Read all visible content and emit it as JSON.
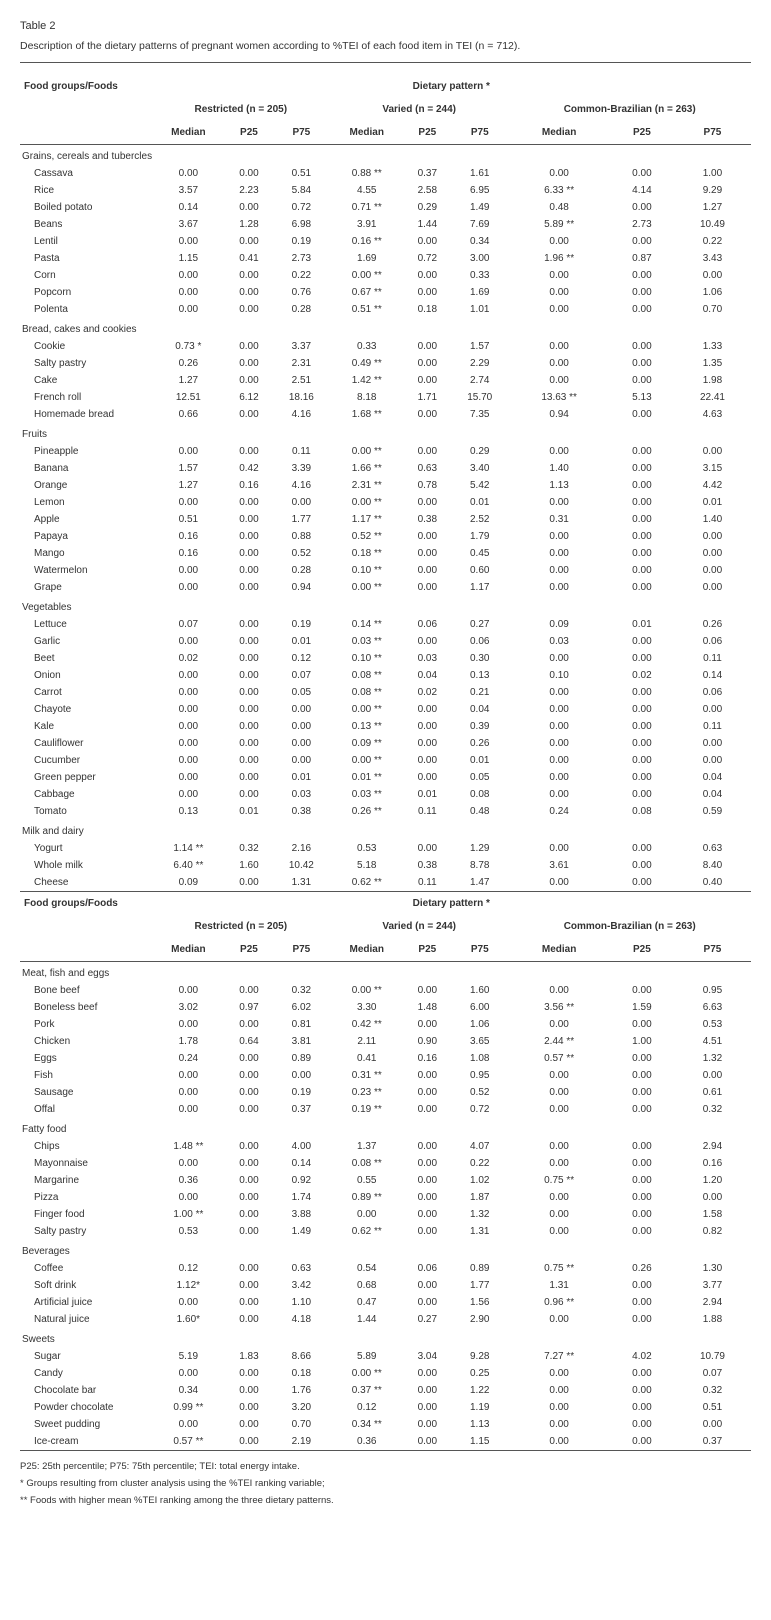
{
  "label": "Table 2",
  "caption": "Description of the dietary patterns of pregnant women according to %TEI of each food item in TEI (n = 712).",
  "header": {
    "c0": "Food groups/Foods",
    "dp": "Dietary pattern *",
    "g1": "Restricted (n = 205)",
    "g2": "Varied (n = 244)",
    "g3": "Common-Brazilian (n = 263)",
    "median": "Median",
    "p25": "P25",
    "p75": "P75"
  },
  "sections1": [
    {
      "title": "Grains, cereals and tubercles",
      "rows": [
        {
          "n": "Cassava",
          "v": [
            "0.00",
            "0.00",
            "0.51",
            "0.88 **",
            "0.37",
            "1.61",
            "0.00",
            "0.00",
            "1.00"
          ]
        },
        {
          "n": "Rice",
          "v": [
            "3.57",
            "2.23",
            "5.84",
            "4.55",
            "2.58",
            "6.95",
            "6.33 **",
            "4.14",
            "9.29"
          ]
        },
        {
          "n": "Boiled potato",
          "v": [
            "0.14",
            "0.00",
            "0.72",
            "0.71 **",
            "0.29",
            "1.49",
            "0.48",
            "0.00",
            "1.27"
          ]
        },
        {
          "n": "Beans",
          "v": [
            "3.67",
            "1.28",
            "6.98",
            "3.91",
            "1.44",
            "7.69",
            "5.89 **",
            "2.73",
            "10.49"
          ]
        },
        {
          "n": "Lentil",
          "v": [
            "0.00",
            "0.00",
            "0.19",
            "0.16 **",
            "0.00",
            "0.34",
            "0.00",
            "0.00",
            "0.22"
          ]
        },
        {
          "n": "Pasta",
          "v": [
            "1.15",
            "0.41",
            "2.73",
            "1.69",
            "0.72",
            "3.00",
            "1.96 **",
            "0.87",
            "3.43"
          ]
        },
        {
          "n": "Corn",
          "v": [
            "0.00",
            "0.00",
            "0.22",
            "0.00 **",
            "0.00",
            "0.33",
            "0.00",
            "0.00",
            "0.00"
          ]
        },
        {
          "n": "Popcorn",
          "v": [
            "0.00",
            "0.00",
            "0.76",
            "0.67 **",
            "0.00",
            "1.69",
            "0.00",
            "0.00",
            "1.06"
          ]
        },
        {
          "n": "Polenta",
          "v": [
            "0.00",
            "0.00",
            "0.28",
            "0.51 **",
            "0.18",
            "1.01",
            "0.00",
            "0.00",
            "0.70"
          ]
        }
      ]
    },
    {
      "title": "Bread, cakes and cookies",
      "rows": [
        {
          "n": "Cookie",
          "v": [
            "0.73 *",
            "0.00",
            "3.37",
            "0.33",
            "0.00",
            "1.57",
            "0.00",
            "0.00",
            "1.33"
          ]
        },
        {
          "n": "Salty pastry",
          "v": [
            "0.26",
            "0.00",
            "2.31",
            "0.49 **",
            "0.00",
            "2.29",
            "0.00",
            "0.00",
            "1.35"
          ]
        },
        {
          "n": "Cake",
          "v": [
            "1.27",
            "0.00",
            "2.51",
            "1.42 **",
            "0.00",
            "2.74",
            "0.00",
            "0.00",
            "1.98"
          ]
        },
        {
          "n": "French roll",
          "v": [
            "12.51",
            "6.12",
            "18.16",
            "8.18",
            "1.71",
            "15.70",
            "13.63 **",
            "5.13",
            "22.41"
          ]
        },
        {
          "n": "Homemade bread",
          "v": [
            "0.66",
            "0.00",
            "4.16",
            "1.68 **",
            "0.00",
            "7.35",
            "0.94",
            "0.00",
            "4.63"
          ]
        }
      ]
    },
    {
      "title": "Fruits",
      "rows": [
        {
          "n": "Pineapple",
          "v": [
            "0.00",
            "0.00",
            "0.11",
            "0.00 **",
            "0.00",
            "0.29",
            "0.00",
            "0.00",
            "0.00"
          ]
        },
        {
          "n": "Banana",
          "v": [
            "1.57",
            "0.42",
            "3.39",
            "1.66 **",
            "0.63",
            "3.40",
            "1.40",
            "0.00",
            "3.15"
          ]
        },
        {
          "n": "Orange",
          "v": [
            "1.27",
            "0.16",
            "4.16",
            "2.31 **",
            "0.78",
            "5.42",
            "1.13",
            "0.00",
            "4.42"
          ]
        },
        {
          "n": "Lemon",
          "v": [
            "0.00",
            "0.00",
            "0.00",
            "0.00 **",
            "0.00",
            "0.01",
            "0.00",
            "0.00",
            "0.01"
          ]
        },
        {
          "n": "Apple",
          "v": [
            "0.51",
            "0.00",
            "1.77",
            "1.17 **",
            "0.38",
            "2.52",
            "0.31",
            "0.00",
            "1.40"
          ]
        },
        {
          "n": "Papaya",
          "v": [
            "0.16",
            "0.00",
            "0.88",
            "0.52 **",
            "0.00",
            "1.79",
            "0.00",
            "0.00",
            "0.00"
          ]
        },
        {
          "n": "Mango",
          "v": [
            "0.16",
            "0.00",
            "0.52",
            "0.18 **",
            "0.00",
            "0.45",
            "0.00",
            "0.00",
            "0.00"
          ]
        },
        {
          "n": "Watermelon",
          "v": [
            "0.00",
            "0.00",
            "0.28",
            "0.10 **",
            "0.00",
            "0.60",
            "0.00",
            "0.00",
            "0.00"
          ]
        },
        {
          "n": "Grape",
          "v": [
            "0.00",
            "0.00",
            "0.94",
            "0.00 **",
            "0.00",
            "1.17",
            "0.00",
            "0.00",
            "0.00"
          ]
        }
      ]
    },
    {
      "title": "Vegetables",
      "rows": [
        {
          "n": "Lettuce",
          "v": [
            "0.07",
            "0.00",
            "0.19",
            "0.14 **",
            "0.06",
            "0.27",
            "0.09",
            "0.01",
            "0.26"
          ]
        },
        {
          "n": "Garlic",
          "v": [
            "0.00",
            "0.00",
            "0.01",
            "0.03 **",
            "0.00",
            "0.06",
            "0.03",
            "0.00",
            "0.06"
          ]
        },
        {
          "n": "Beet",
          "v": [
            "0.02",
            "0.00",
            "0.12",
            "0.10 **",
            "0.03",
            "0.30",
            "0.00",
            "0.00",
            "0.11"
          ]
        },
        {
          "n": "Onion",
          "v": [
            "0.00",
            "0.00",
            "0.07",
            "0.08 **",
            "0.04",
            "0.13",
            "0.10",
            "0.02",
            "0.14"
          ]
        },
        {
          "n": "Carrot",
          "v": [
            "0.00",
            "0.00",
            "0.05",
            "0.08 **",
            "0.02",
            "0.21",
            "0.00",
            "0.00",
            "0.06"
          ]
        },
        {
          "n": "Chayote",
          "v": [
            "0.00",
            "0.00",
            "0.00",
            "0.00 **",
            "0.00",
            "0.04",
            "0.00",
            "0.00",
            "0.00"
          ]
        },
        {
          "n": "Kale",
          "v": [
            "0.00",
            "0.00",
            "0.00",
            "0.13 **",
            "0.00",
            "0.39",
            "0.00",
            "0.00",
            "0.11"
          ]
        },
        {
          "n": "Cauliflower",
          "v": [
            "0.00",
            "0.00",
            "0.00",
            "0.09 **",
            "0.00",
            "0.26",
            "0.00",
            "0.00",
            "0.00"
          ]
        },
        {
          "n": "Cucumber",
          "v": [
            "0.00",
            "0.00",
            "0.00",
            "0.00 **",
            "0.00",
            "0.01",
            "0.00",
            "0.00",
            "0.00"
          ]
        },
        {
          "n": "Green pepper",
          "v": [
            "0.00",
            "0.00",
            "0.01",
            "0.01 **",
            "0.00",
            "0.05",
            "0.00",
            "0.00",
            "0.04"
          ]
        },
        {
          "n": "Cabbage",
          "v": [
            "0.00",
            "0.00",
            "0.03",
            "0.03 **",
            "0.01",
            "0.08",
            "0.00",
            "0.00",
            "0.04"
          ]
        },
        {
          "n": "Tomato",
          "v": [
            "0.13",
            "0.01",
            "0.38",
            "0.26 **",
            "0.11",
            "0.48",
            "0.24",
            "0.08",
            "0.59"
          ]
        }
      ]
    },
    {
      "title": "Milk and dairy",
      "rows": [
        {
          "n": "Yogurt",
          "v": [
            "1.14 **",
            "0.32",
            "2.16",
            "0.53",
            "0.00",
            "1.29",
            "0.00",
            "0.00",
            "0.63"
          ]
        },
        {
          "n": "Whole milk",
          "v": [
            "6.40 **",
            "1.60",
            "10.42",
            "5.18",
            "0.38",
            "8.78",
            "3.61",
            "0.00",
            "8.40"
          ]
        },
        {
          "n": "Cheese",
          "v": [
            "0.09",
            "0.00",
            "1.31",
            "0.62 **",
            "0.11",
            "1.47",
            "0.00",
            "0.00",
            "0.40"
          ]
        }
      ]
    }
  ],
  "sections2": [
    {
      "title": "Meat, fish and eggs",
      "rows": [
        {
          "n": "Bone beef",
          "v": [
            "0.00",
            "0.00",
            "0.32",
            "0.00 **",
            "0.00",
            "1.60",
            "0.00",
            "0.00",
            "0.95"
          ]
        },
        {
          "n": "Boneless beef",
          "v": [
            "3.02",
            "0.97",
            "6.02",
            "3.30",
            "1.48",
            "6.00",
            "3.56 **",
            "1.59",
            "6.63"
          ]
        },
        {
          "n": "Pork",
          "v": [
            "0.00",
            "0.00",
            "0.81",
            "0.42 **",
            "0.00",
            "1.06",
            "0.00",
            "0.00",
            "0.53"
          ]
        },
        {
          "n": "Chicken",
          "v": [
            "1.78",
            "0.64",
            "3.81",
            "2.11",
            "0.90",
            "3.65",
            "2.44 **",
            "1.00",
            "4.51"
          ]
        },
        {
          "n": "Eggs",
          "v": [
            "0.24",
            "0.00",
            "0.89",
            "0.41",
            "0.16",
            "1.08",
            "0.57 **",
            "0.00",
            "1.32"
          ]
        },
        {
          "n": "Fish",
          "v": [
            "0.00",
            "0.00",
            "0.00",
            "0.31 **",
            "0.00",
            "0.95",
            "0.00",
            "0.00",
            "0.00"
          ]
        },
        {
          "n": "Sausage",
          "v": [
            "0.00",
            "0.00",
            "0.19",
            "0.23 **",
            "0.00",
            "0.52",
            "0.00",
            "0.00",
            "0.61"
          ]
        },
        {
          "n": "Offal",
          "v": [
            "0.00",
            "0.00",
            "0.37",
            "0.19 **",
            "0.00",
            "0.72",
            "0.00",
            "0.00",
            "0.32"
          ]
        }
      ]
    },
    {
      "title": "Fatty food",
      "rows": [
        {
          "n": "Chips",
          "v": [
            "1.48 **",
            "0.00",
            "4.00",
            "1.37",
            "0.00",
            "4.07",
            "0.00",
            "0.00",
            "2.94"
          ]
        },
        {
          "n": "Mayonnaise",
          "v": [
            "0.00",
            "0.00",
            "0.14",
            "0.08 **",
            "0.00",
            "0.22",
            "0.00",
            "0.00",
            "0.16"
          ]
        },
        {
          "n": "Margarine",
          "v": [
            "0.36",
            "0.00",
            "0.92",
            "0.55",
            "0.00",
            "1.02",
            "0.75 **",
            "0.00",
            "1.20"
          ]
        },
        {
          "n": "Pizza",
          "v": [
            "0.00",
            "0.00",
            "1.74",
            "0.89 **",
            "0.00",
            "1.87",
            "0.00",
            "0.00",
            "0.00"
          ]
        },
        {
          "n": "Finger food",
          "v": [
            "1.00 **",
            "0.00",
            "3.88",
            "0.00",
            "0.00",
            "1.32",
            "0.00",
            "0.00",
            "1.58"
          ]
        },
        {
          "n": "Salty pastry",
          "v": [
            "0.53",
            "0.00",
            "1.49",
            "0.62 **",
            "0.00",
            "1.31",
            "0.00",
            "0.00",
            "0.82"
          ]
        }
      ]
    },
    {
      "title": "Beverages",
      "rows": [
        {
          "n": "Coffee",
          "v": [
            "0.12",
            "0.00",
            "0.63",
            "0.54",
            "0.06",
            "0.89",
            "0.75 **",
            "0.26",
            "1.30"
          ]
        },
        {
          "n": "Soft drink",
          "v": [
            "1.12*",
            "0.00",
            "3.42",
            "0.68",
            "0.00",
            "1.77",
            "1.31",
            "0.00",
            "3.77"
          ]
        },
        {
          "n": "Artificial juice",
          "v": [
            "0.00",
            "0.00",
            "1.10",
            "0.47",
            "0.00",
            "1.56",
            "0.96 **",
            "0.00",
            "2.94"
          ]
        },
        {
          "n": "Natural juice",
          "v": [
            "1.60*",
            "0.00",
            "4.18",
            "1.44",
            "0.27",
            "2.90",
            "0.00",
            "0.00",
            "1.88"
          ]
        }
      ]
    },
    {
      "title": "Sweets",
      "rows": [
        {
          "n": "Sugar",
          "v": [
            "5.19",
            "1.83",
            "8.66",
            "5.89",
            "3.04",
            "9.28",
            "7.27 **",
            "4.02",
            "10.79"
          ]
        },
        {
          "n": "Candy",
          "v": [
            "0.00",
            "0.00",
            "0.18",
            "0.00 **",
            "0.00",
            "0.25",
            "0.00",
            "0.00",
            "0.07"
          ]
        },
        {
          "n": "Chocolate bar",
          "v": [
            "0.34",
            "0.00",
            "1.76",
            "0.37 **",
            "0.00",
            "1.22",
            "0.00",
            "0.00",
            "0.32"
          ]
        },
        {
          "n": "Powder chocolate",
          "v": [
            "0.99 **",
            "0.00",
            "3.20",
            "0.12",
            "0.00",
            "1.19",
            "0.00",
            "0.00",
            "0.51"
          ]
        },
        {
          "n": "Sweet pudding",
          "v": [
            "0.00",
            "0.00",
            "0.70",
            "0.34 **",
            "0.00",
            "1.13",
            "0.00",
            "0.00",
            "0.00"
          ]
        },
        {
          "n": "Ice-cream",
          "v": [
            "0.57 **",
            "0.00",
            "2.19",
            "0.36",
            "0.00",
            "1.15",
            "0.00",
            "0.00",
            "0.37"
          ]
        }
      ]
    }
  ],
  "footnotes": [
    "P25: 25th percentile; P75: 75th percentile; TEI: total energy intake.",
    "* Groups resulting from cluster analysis using the %TEI ranking variable;",
    "** Foods with higher mean %TEI ranking among the three dietary patterns."
  ]
}
